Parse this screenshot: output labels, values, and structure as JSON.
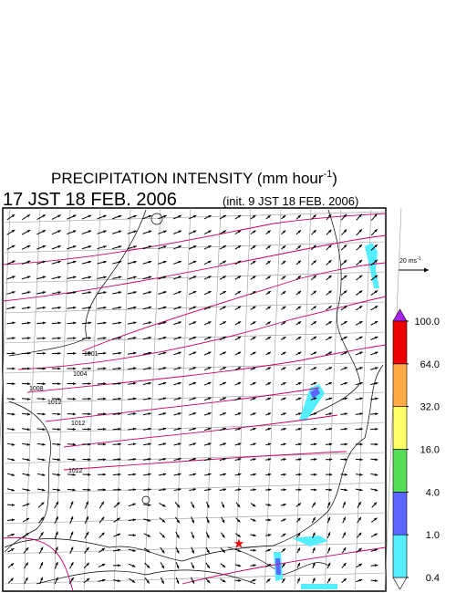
{
  "header": {
    "title": "PRECIPITATION INTENSITY (mm hour",
    "title_exponent": "-1",
    "title_close": ")",
    "valid_time": "17 JST 18 FEB. 2006",
    "init_time": "(init. 9 JST 18 FEB. 2006)"
  },
  "wind_legend": {
    "label": "20 ms",
    "exponent": "-1"
  },
  "colorbar": {
    "levels": [
      0.4,
      {
        "value": 1,
        "label": "1.0"
      },
      {
        "value": 4,
        "label": "4.0"
      },
      {
        "value": 16,
        "label": "16.0"
      },
      {
        "value": 32,
        "label": "32.0"
      },
      {
        "value": 64,
        "label": "64.0"
      },
      {
        "value": 100,
        "label": "100.0"
      }
    ],
    "colors": [
      "#55eeff",
      "#5a66ff",
      "#55dd55",
      "#ffff66",
      "#ffaa44",
      "#ee0000"
    ],
    "over_color": "#aa22ee",
    "under_color": "#ffffff"
  },
  "isobar_labels": [
    "1001",
    "1004",
    "1008",
    "1012",
    "1012",
    "1012"
  ]
}
